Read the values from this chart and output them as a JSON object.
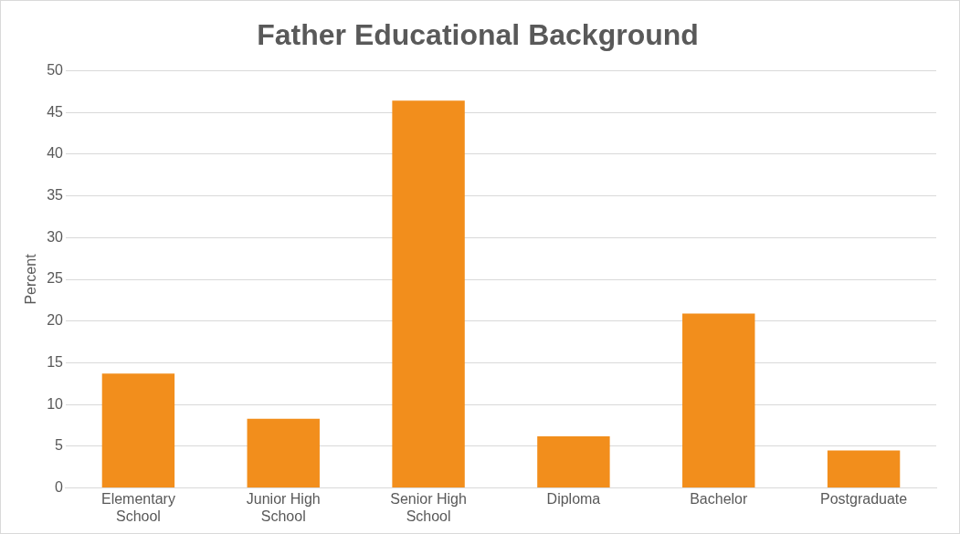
{
  "chart_data": {
    "type": "bar",
    "title": "Father Educational Background",
    "ylabel": "Percent",
    "categories": [
      "Elementary School",
      "Junior High School",
      "Senior High School",
      "Diploma",
      "Bachelor",
      "Postgraduate"
    ],
    "values": [
      13.7,
      8.3,
      46.4,
      6.2,
      20.9,
      4.5
    ],
    "color": "#f28e1c",
    "ylim": [
      0,
      50
    ],
    "yticks": [
      0,
      5,
      10,
      15,
      20,
      25,
      30,
      35,
      40,
      45,
      50
    ],
    "grid": "y"
  }
}
